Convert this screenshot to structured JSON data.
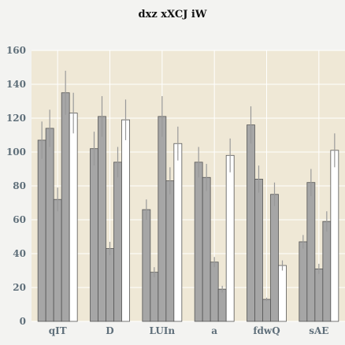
{
  "chart_data": {
    "type": "bar",
    "title": "dxz xXCJ iW",
    "xlabel": "",
    "ylabel": "",
    "ylim": [
      0,
      160
    ],
    "yticks": [
      0,
      20,
      40,
      60,
      80,
      100,
      120,
      140,
      160
    ],
    "grid": true,
    "categories": [
      "qIT",
      "D",
      "LUIn",
      "a",
      "fdwQ",
      "sAE"
    ],
    "series": [
      {
        "values": [
          107,
          102,
          66,
          94,
          116,
          47
        ],
        "errors": [
          11,
          10,
          6,
          9,
          11,
          4
        ],
        "color": "#a6a6a6"
      },
      {
        "values": [
          114,
          121,
          29,
          85,
          84,
          82
        ],
        "errors": [
          11,
          12,
          3,
          8,
          8,
          8
        ],
        "color": "#a6a6a6"
      },
      {
        "values": [
          72,
          43,
          121,
          35,
          13,
          31
        ],
        "errors": [
          7,
          4,
          12,
          3,
          1,
          3
        ],
        "color": "#a6a6a6"
      },
      {
        "values": [
          135,
          94,
          83,
          19,
          75,
          59
        ],
        "errors": [
          13,
          9,
          8,
          2,
          7,
          6
        ],
        "color": "#a6a6a6"
      },
      {
        "values": [
          123,
          119,
          105,
          98,
          33,
          101
        ],
        "errors": [
          12,
          12,
          10,
          10,
          3,
          10
        ],
        "color": "#ffffff"
      }
    ]
  },
  "colors": {
    "plot_background": "#efe8d6",
    "page_background": "#f3f3f1",
    "grid": "#ffffff",
    "bar_edge": "#555555",
    "error_bar": "#999999",
    "tick_label": "#5f6f7a"
  }
}
